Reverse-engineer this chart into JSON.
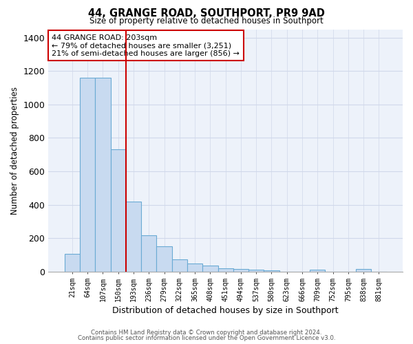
{
  "title": "44, GRANGE ROAD, SOUTHPORT, PR9 9AD",
  "subtitle": "Size of property relative to detached houses in Southport",
  "xlabel": "Distribution of detached houses by size in Southport",
  "ylabel": "Number of detached properties",
  "categories": [
    "21sqm",
    "64sqm",
    "107sqm",
    "150sqm",
    "193sqm",
    "236sqm",
    "279sqm",
    "322sqm",
    "365sqm",
    "408sqm",
    "451sqm",
    "494sqm",
    "537sqm",
    "580sqm",
    "623sqm",
    "666sqm",
    "709sqm",
    "752sqm",
    "795sqm",
    "838sqm",
    "881sqm"
  ],
  "values": [
    107,
    1160,
    1160,
    730,
    420,
    215,
    150,
    73,
    50,
    37,
    20,
    15,
    10,
    5,
    0,
    0,
    10,
    0,
    0,
    17,
    0
  ],
  "bar_color": "#c8daf0",
  "bar_edge_color": "#6aaad4",
  "vline_index": 4,
  "vline_color": "#cc0000",
  "annotation_text": "44 GRANGE ROAD: 203sqm\n← 79% of detached houses are smaller (3,251)\n21% of semi-detached houses are larger (856) →",
  "annotation_box_color": "#ffffff",
  "annotation_box_edge_color": "#cc0000",
  "ylim": [
    0,
    1450
  ],
  "yticks": [
    0,
    200,
    400,
    600,
    800,
    1000,
    1200,
    1400
  ],
  "footer_line1": "Contains HM Land Registry data © Crown copyright and database right 2024.",
  "footer_line2": "Contains public sector information licensed under the Open Government Licence v3.0.",
  "bg_color": "#edf2fa",
  "grid_color": "#d0d8ea"
}
